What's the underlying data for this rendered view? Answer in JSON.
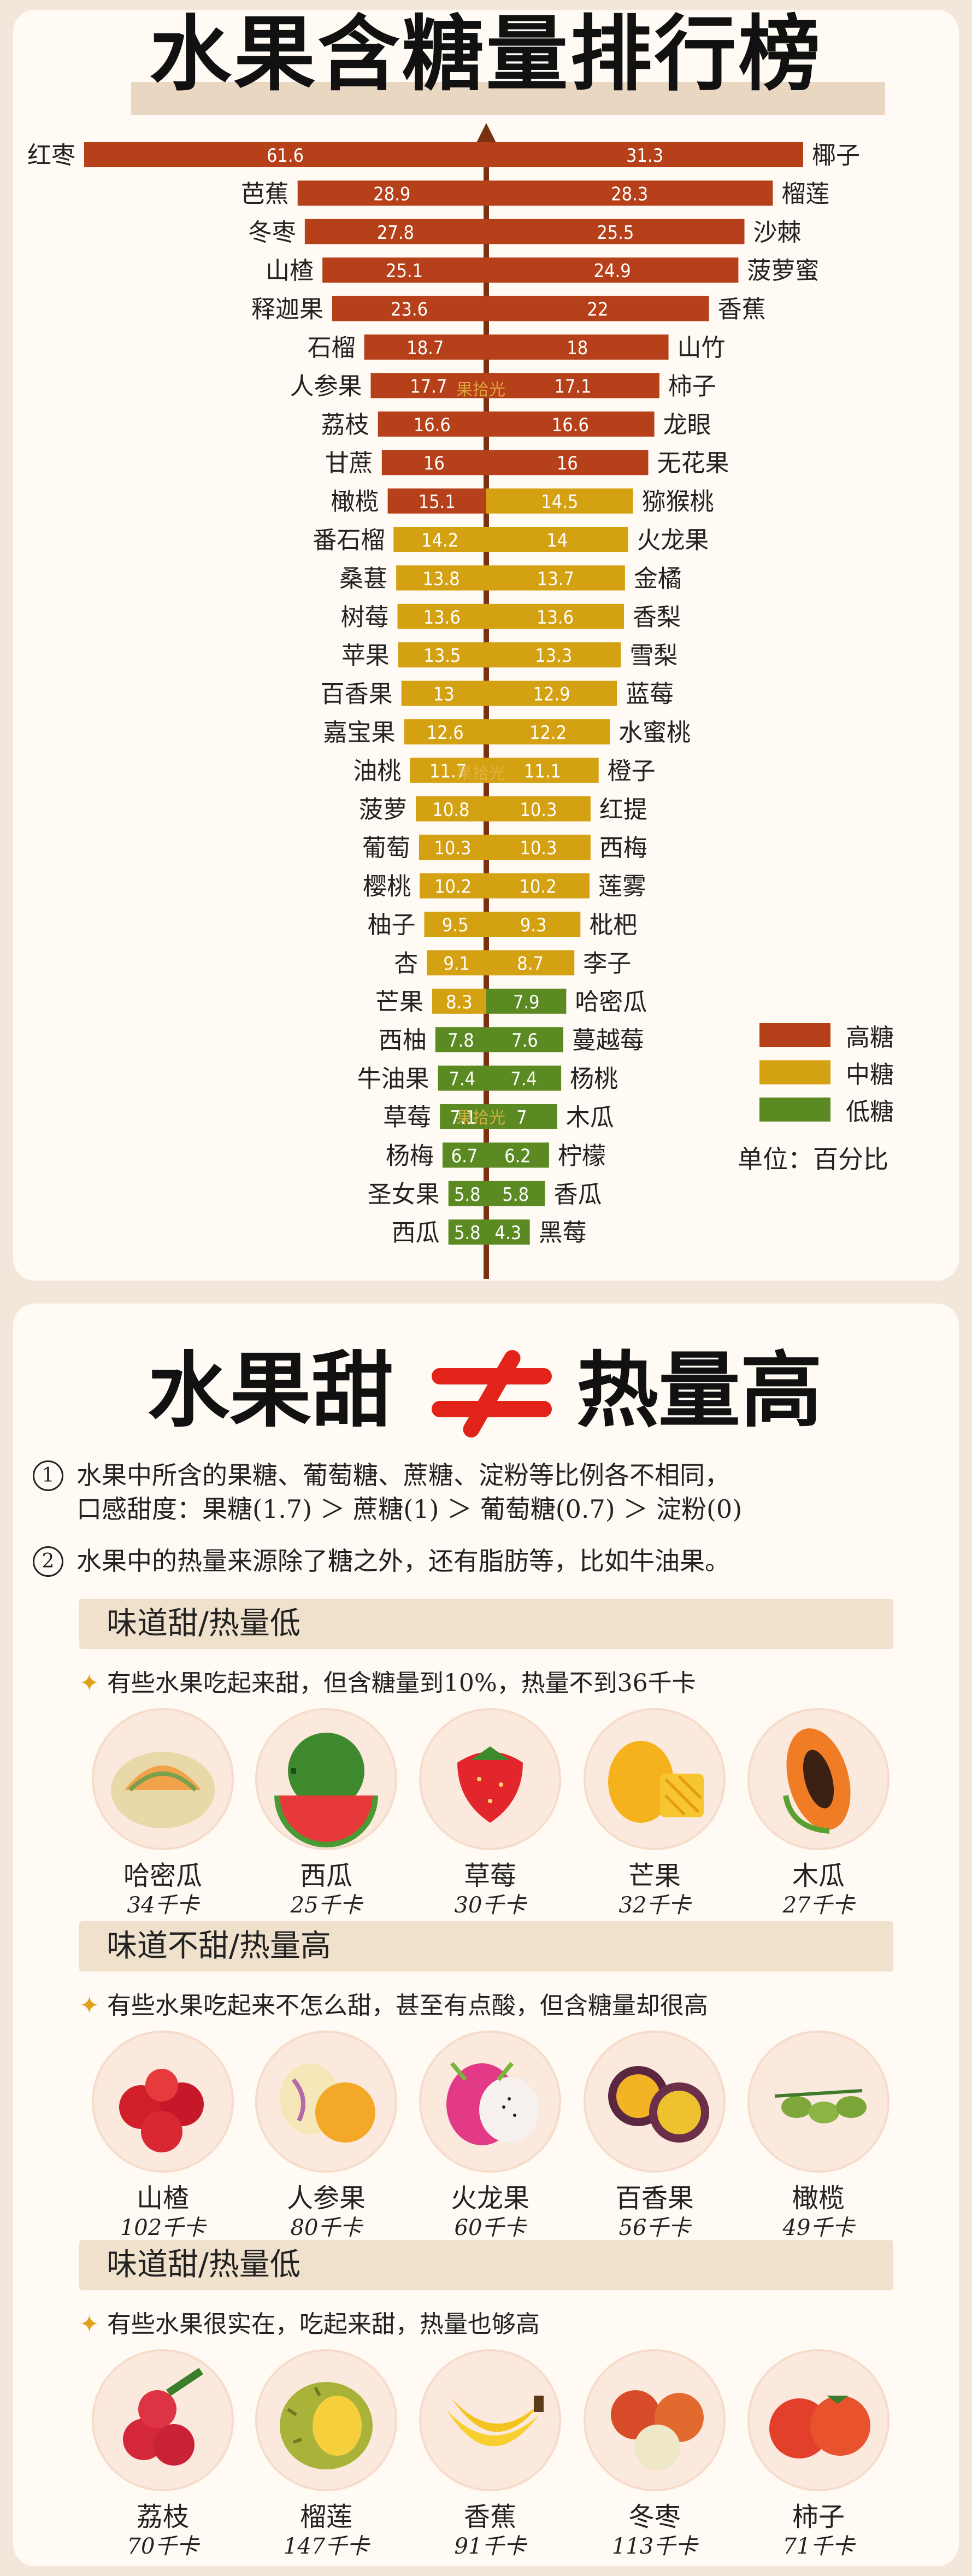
{
  "title": "水果含糖量排行榜",
  "colors": {
    "high": "#b5401a",
    "mid": "#d4a112",
    "low": "#5b8a23",
    "axis": "#7a3112"
  },
  "chart_data": {
    "type": "bar",
    "unit": "单位：百分比",
    "legend": [
      {
        "label": "高糖",
        "color": "#b5401a"
      },
      {
        "label": "中糖",
        "color": "#d4a112"
      },
      {
        "label": "低糖",
        "color": "#5b8a23"
      }
    ],
    "left_series": [
      {
        "name": "红枣",
        "value": 61.6,
        "level": "high"
      },
      {
        "name": "芭蕉",
        "value": 28.9,
        "level": "high"
      },
      {
        "name": "冬枣",
        "value": 27.8,
        "level": "high"
      },
      {
        "name": "山楂",
        "value": 25.1,
        "level": "high"
      },
      {
        "name": "释迦果",
        "value": 23.6,
        "level": "high"
      },
      {
        "name": "石榴",
        "value": 18.7,
        "level": "high"
      },
      {
        "name": "人参果",
        "value": 17.7,
        "level": "high"
      },
      {
        "name": "荔枝",
        "value": 16.6,
        "level": "high"
      },
      {
        "name": "甘蔗",
        "value": 16,
        "level": "high"
      },
      {
        "name": "橄榄",
        "value": 15.1,
        "level": "high"
      },
      {
        "name": "番石榴",
        "value": 14.2,
        "level": "mid"
      },
      {
        "name": "桑葚",
        "value": 13.8,
        "level": "mid"
      },
      {
        "name": "树莓",
        "value": 13.6,
        "level": "mid"
      },
      {
        "name": "苹果",
        "value": 13.5,
        "level": "mid"
      },
      {
        "name": "百香果",
        "value": 13,
        "level": "mid"
      },
      {
        "name": "嘉宝果",
        "value": 12.6,
        "level": "mid"
      },
      {
        "name": "油桃",
        "value": 11.7,
        "level": "mid"
      },
      {
        "name": "菠萝",
        "value": 10.8,
        "level": "mid"
      },
      {
        "name": "葡萄",
        "value": 10.3,
        "level": "mid"
      },
      {
        "name": "樱桃",
        "value": 10.2,
        "level": "mid"
      },
      {
        "name": "柚子",
        "value": 9.5,
        "level": "mid"
      },
      {
        "name": "杏",
        "value": 9.1,
        "level": "mid"
      },
      {
        "name": "芒果",
        "value": 8.3,
        "level": "mid"
      },
      {
        "name": "西柚",
        "value": 7.8,
        "level": "low"
      },
      {
        "name": "牛油果",
        "value": 7.4,
        "level": "low"
      },
      {
        "name": "草莓",
        "value": 7.1,
        "level": "low"
      },
      {
        "name": "杨梅",
        "value": 6.7,
        "level": "low"
      },
      {
        "name": "圣女果",
        "value": 5.8,
        "level": "low"
      },
      {
        "name": "西瓜",
        "value": 5.8,
        "level": "low"
      }
    ],
    "right_series": [
      {
        "name": "椰子",
        "value": 31.3,
        "level": "high"
      },
      {
        "name": "榴莲",
        "value": 28.3,
        "level": "high"
      },
      {
        "name": "沙棘",
        "value": 25.5,
        "level": "high"
      },
      {
        "name": "菠萝蜜",
        "value": 24.9,
        "level": "high"
      },
      {
        "name": "香蕉",
        "value": 22,
        "level": "high"
      },
      {
        "name": "山竹",
        "value": 18,
        "level": "high"
      },
      {
        "name": "柿子",
        "value": 17.1,
        "level": "high"
      },
      {
        "name": "龙眼",
        "value": 16.6,
        "level": "high"
      },
      {
        "name": "无花果",
        "value": 16,
        "level": "high"
      },
      {
        "name": "猕猴桃",
        "value": 14.5,
        "level": "mid"
      },
      {
        "name": "火龙果",
        "value": 14,
        "level": "mid"
      },
      {
        "name": "金橘",
        "value": 13.7,
        "level": "mid"
      },
      {
        "name": "香梨",
        "value": 13.6,
        "level": "mid"
      },
      {
        "name": "雪梨",
        "value": 13.3,
        "level": "mid"
      },
      {
        "name": "蓝莓",
        "value": 12.9,
        "level": "mid"
      },
      {
        "name": "水蜜桃",
        "value": 12.2,
        "level": "mid"
      },
      {
        "name": "橙子",
        "value": 11.1,
        "level": "mid"
      },
      {
        "name": "红提",
        "value": 10.3,
        "level": "mid"
      },
      {
        "name": "西梅",
        "value": 10.3,
        "level": "mid"
      },
      {
        "name": "莲雾",
        "value": 10.2,
        "level": "mid"
      },
      {
        "name": "枇杷",
        "value": 9.3,
        "level": "mid"
      },
      {
        "name": "李子",
        "value": 8.7,
        "level": "mid"
      },
      {
        "name": "哈密瓜",
        "value": 7.9,
        "level": "low"
      },
      {
        "name": "蔓越莓",
        "value": 7.6,
        "level": "low"
      },
      {
        "name": "杨桃",
        "value": 7.4,
        "level": "low"
      },
      {
        "name": "木瓜",
        "value": 7,
        "level": "low"
      },
      {
        "name": "柠檬",
        "value": 6.2,
        "level": "low"
      },
      {
        "name": "香瓜",
        "value": 5.8,
        "level": "low"
      },
      {
        "name": "黑莓",
        "value": 4.3,
        "level": "low"
      }
    ]
  },
  "watermark": "果拾光",
  "section2": {
    "title_left": "水果甜",
    "title_right": "热量高",
    "neq_symbol": "≠",
    "note1_num": "1",
    "note1_line1": "水果中所含的果糖、葡萄糖、蔗糖、淀粉等比例各不相同，",
    "note1_line2": "口感甜度：果糖(1.7) ＞ 蔗糖(1) ＞ 葡萄糖(0.7) ＞ 淀粉(0)",
    "note2_num": "2",
    "note2_line": "水果中的热量来源除了糖之外，还有脂肪等，比如牛油果。",
    "groups": [
      {
        "heading": "味道甜/热量低",
        "desc": "有些水果吃起来甜，但含糖量到10%，热量不到36千卡",
        "fruits": [
          {
            "name": "哈密瓜",
            "kcal": "34千卡",
            "icon": "hami-melon-icon"
          },
          {
            "name": "西瓜",
            "kcal": "25千卡",
            "icon": "watermelon-icon"
          },
          {
            "name": "草莓",
            "kcal": "30千卡",
            "icon": "strawberry-icon"
          },
          {
            "name": "芒果",
            "kcal": "32千卡",
            "icon": "mango-icon"
          },
          {
            "name": "木瓜",
            "kcal": "27千卡",
            "icon": "papaya-icon"
          }
        ]
      },
      {
        "heading": "味道不甜/热量高",
        "desc": "有些水果吃起来不怎么甜，甚至有点酸，但含糖量却很高",
        "fruits": [
          {
            "name": "山楂",
            "kcal": "102千卡",
            "icon": "hawthorn-icon"
          },
          {
            "name": "人参果",
            "kcal": "80千卡",
            "icon": "pepino-icon"
          },
          {
            "name": "火龙果",
            "kcal": "60千卡",
            "icon": "dragon-fruit-icon"
          },
          {
            "name": "百香果",
            "kcal": "56千卡",
            "icon": "passion-fruit-icon"
          },
          {
            "name": "橄榄",
            "kcal": "49千卡",
            "icon": "olive-icon"
          }
        ]
      },
      {
        "heading": "味道甜/热量低",
        "desc": "有些水果很实在，吃起来甜，热量也够高",
        "fruits": [
          {
            "name": "荔枝",
            "kcal": "70千卡",
            "icon": "lychee-icon"
          },
          {
            "name": "榴莲",
            "kcal": "147千卡",
            "icon": "durian-icon"
          },
          {
            "name": "香蕉",
            "kcal": "91千卡",
            "icon": "banana-icon"
          },
          {
            "name": "冬枣",
            "kcal": "113千卡",
            "icon": "winter-jujube-icon"
          },
          {
            "name": "柿子",
            "kcal": "71千卡",
            "icon": "persimmon-icon"
          }
        ]
      }
    ]
  }
}
